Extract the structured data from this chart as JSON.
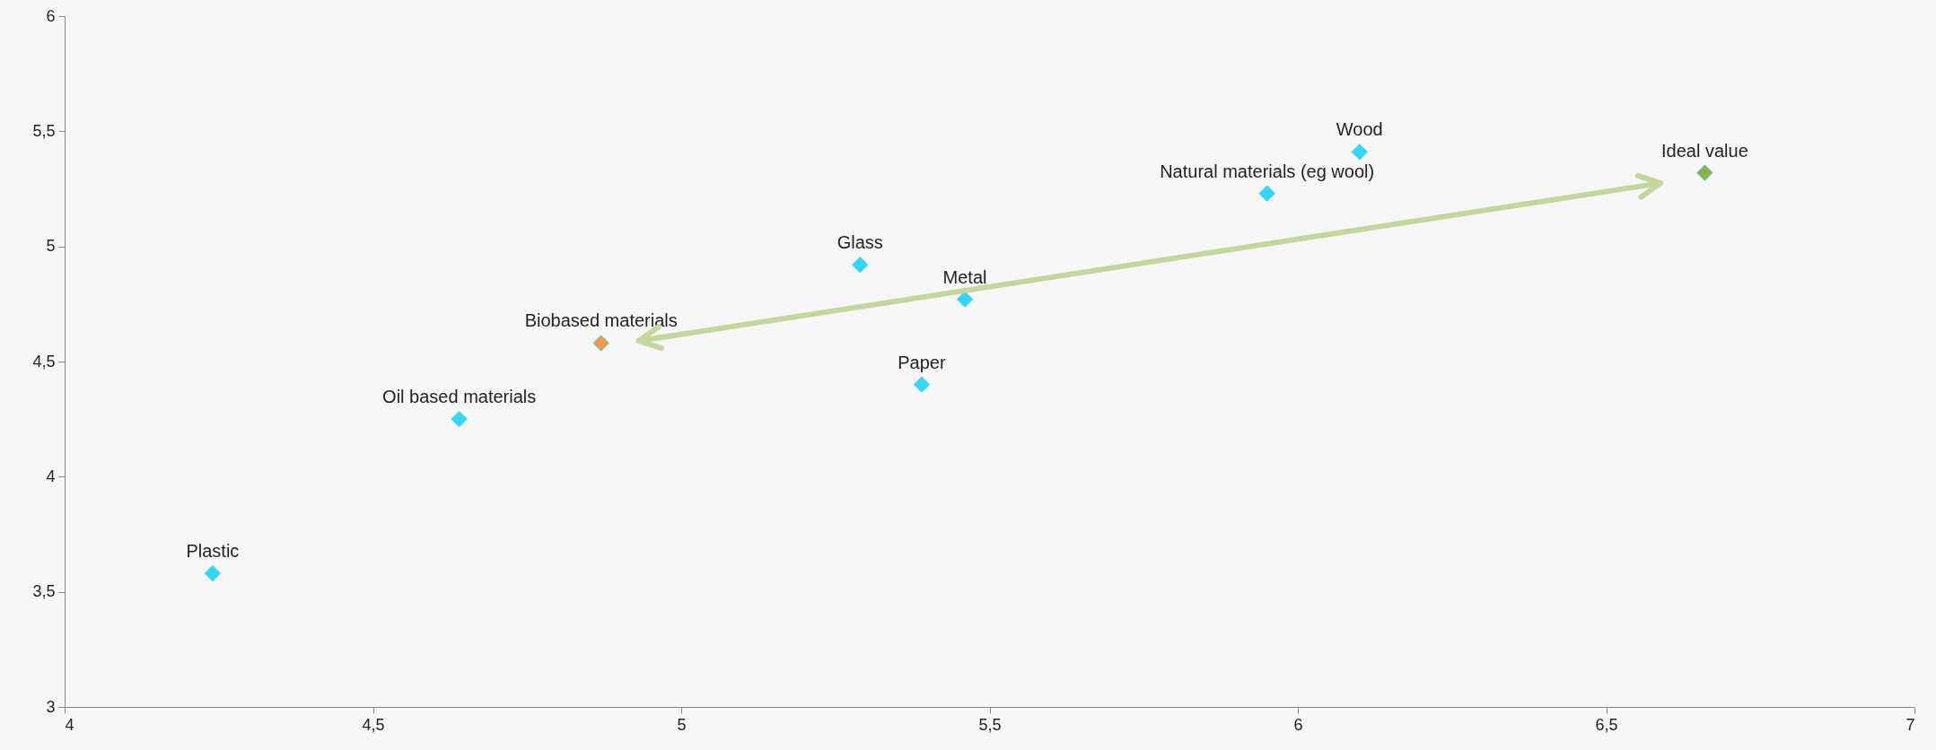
{
  "chart_data": {
    "type": "scatter",
    "marker": "diamond",
    "grid": false,
    "xlim": [
      4,
      7
    ],
    "xticks": [
      4,
      {
        "value": 4.5,
        "label": "4,5"
      },
      5,
      {
        "value": 5.5,
        "label": "5,5"
      },
      6,
      {
        "value": 6.5,
        "label": "6,5"
      },
      7
    ],
    "ylim": [
      3,
      6
    ],
    "yticks": [
      3,
      {
        "value": 3.5,
        "label": "3,5"
      },
      4,
      {
        "value": 4.5,
        "label": "4,5"
      },
      5,
      {
        "value": 5.5,
        "label": "5,5"
      },
      6
    ],
    "series": [
      {
        "name": "Plastic",
        "color": "#33d6ff",
        "x": [
          4.24
        ],
        "values": [
          3.58
        ]
      },
      {
        "name": "Oil based materials",
        "color": "#33d6ff",
        "x": [
          4.64
        ],
        "values": [
          4.25
        ]
      },
      {
        "name": "Biobased materials",
        "color": "#f79646",
        "x": [
          4.87
        ],
        "values": [
          4.58
        ]
      },
      {
        "name": "Glass",
        "color": "#33d6ff",
        "x": [
          5.29
        ],
        "values": [
          4.92
        ]
      },
      {
        "name": "Metal",
        "color": "#33d6ff",
        "x": [
          5.46
        ],
        "values": [
          4.77
        ]
      },
      {
        "name": "Paper",
        "color": "#33d6ff",
        "x": [
          5.39
        ],
        "values": [
          4.4
        ]
      },
      {
        "name": "Natural materials (eg wool)",
        "color": "#33d6ff",
        "x": [
          5.95
        ],
        "values": [
          5.23
        ]
      },
      {
        "name": "Wood",
        "color": "#33d6ff",
        "x": [
          6.1
        ],
        "values": [
          5.41
        ]
      },
      {
        "name": "Ideal value",
        "color": "#8fae3c",
        "x": [
          6.66
        ],
        "values": [
          5.32
        ]
      }
    ]
  }
}
